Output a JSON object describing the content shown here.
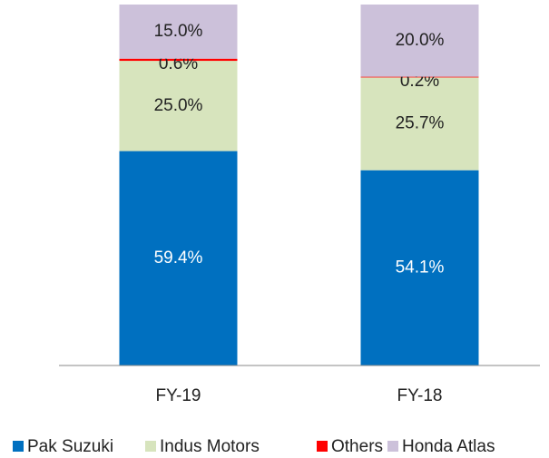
{
  "chart_data": {
    "type": "stacked_bar",
    "categories": [
      "FY-19",
      "FY-18"
    ],
    "series": [
      {
        "name": "Pak Suzuki",
        "color": "#0070c0",
        "values": [
          59.4,
          54.1
        ],
        "value_labels": [
          "59.4%",
          "54.1%"
        ]
      },
      {
        "name": "Indus Motors",
        "color": "#d7e4bd",
        "values": [
          25.0,
          25.7
        ],
        "value_labels": [
          "25.0%",
          "25.7%"
        ]
      },
      {
        "name": "Others",
        "color": "#ff0000",
        "values": [
          0.6,
          0.2
        ],
        "value_labels": [
          "0.6%",
          "0.2%"
        ]
      },
      {
        "name": "Honda Atlas",
        "color": "#ccc1da",
        "values": [
          15.0,
          20.0
        ],
        "value_labels": [
          "15.0%",
          "20.0%"
        ]
      }
    ],
    "ylim": [
      0,
      100
    ],
    "legend": "bottom"
  }
}
